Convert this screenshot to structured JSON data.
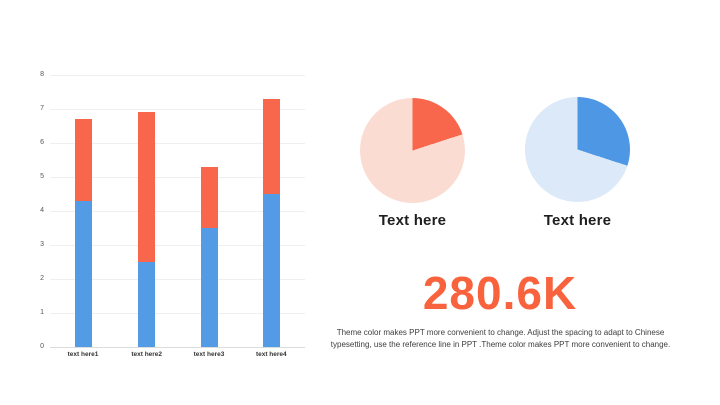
{
  "page": {
    "background": "#ffffff"
  },
  "colors": {
    "orange": "#F8674B",
    "blue": "#549BE5",
    "light_orange": "#FBDCD2",
    "light_blue": "#DCE9F8",
    "stat_orange": "#F8623C",
    "gridline": "#efefef",
    "axis_line": "#dcdcdc",
    "tick_text": "#555555"
  },
  "chart_data": [
    {
      "type": "bar",
      "stacked": true,
      "title": "",
      "xlabel": "",
      "ylabel": "",
      "categories": [
        "text here1",
        "text here2",
        "text here3",
        "text here4"
      ],
      "series": [
        {
          "name": "blue-segment",
          "color": "#549BE5",
          "values": [
            4.3,
            2.5,
            3.5,
            4.5
          ]
        },
        {
          "name": "orange-segment",
          "color": "#F8674B",
          "values": [
            2.4,
            4.4,
            1.8,
            2.8
          ]
        }
      ],
      "totals": [
        6.7,
        6.9,
        5.3,
        7.3
      ],
      "ylim": [
        0,
        8
      ],
      "yticks": [
        0,
        1,
        2,
        3,
        4,
        5,
        6,
        7,
        8
      ],
      "grid": true,
      "legend": "none"
    },
    {
      "type": "pie",
      "label": "Text here",
      "slices": [
        {
          "name": "highlight",
          "value": 20,
          "color": "#F8674B"
        },
        {
          "name": "remainder",
          "value": 80,
          "color": "#FBDCD2"
        }
      ],
      "start_angle_deg": 0
    },
    {
      "type": "pie",
      "label": "Text here",
      "slices": [
        {
          "name": "highlight",
          "value": 30,
          "color": "#4E97E5"
        },
        {
          "name": "remainder",
          "value": 70,
          "color": "#DCE9F8"
        }
      ],
      "start_angle_deg": 0
    }
  ],
  "stat": {
    "value": "280.6K",
    "color": "#F8623C"
  },
  "description": {
    "line1": "Theme color makes PPT more convenient to change. Adjust the spacing to adapt to Chinese",
    "line2": "typesetting, use the reference line in PPT .Theme color makes PPT more convenient to change."
  }
}
